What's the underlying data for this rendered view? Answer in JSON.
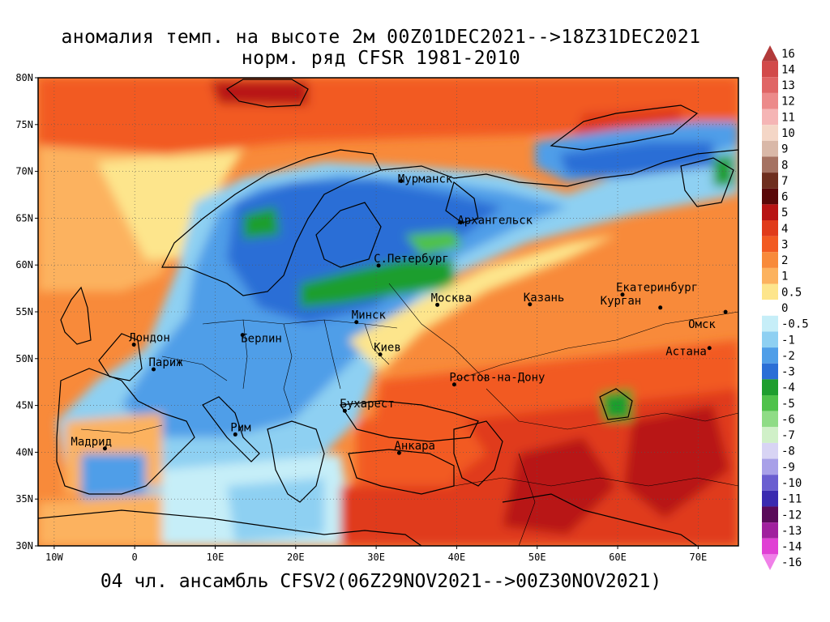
{
  "title_line1": "аномалия темп. на высоте 2м 00Z01DEC2021-->18Z31DEC2021",
  "title_line2": "норм. ряд CFSR 1981-2010",
  "footer": "04 чл. ансамбль CFSV2(06Z29NOV2021-->00Z30NOV2021)",
  "lat_ticks": [
    "80N",
    "75N",
    "70N",
    "65N",
    "60N",
    "55N",
    "50N",
    "45N",
    "40N",
    "35N",
    "30N"
  ],
  "lon_ticks": [
    "10W",
    "0",
    "10E",
    "20E",
    "30E",
    "40E",
    "50E",
    "60E",
    "70E"
  ],
  "legend": [
    {
      "label": "16",
      "color": "#b23a3a"
    },
    {
      "label": "14",
      "color": "#d24a4a"
    },
    {
      "label": "13",
      "color": "#e06565"
    },
    {
      "label": "12",
      "color": "#ec8a8a"
    },
    {
      "label": "11",
      "color": "#f5b5b5"
    },
    {
      "label": "10",
      "color": "#f4d6c6"
    },
    {
      "label": "9",
      "color": "#d9b8a8"
    },
    {
      "label": "8",
      "color": "#a57262"
    },
    {
      "label": "7",
      "color": "#6e2e1e"
    },
    {
      "label": "6",
      "color": "#5a0808"
    },
    {
      "label": "5",
      "color": "#b81414"
    },
    {
      "label": "4",
      "color": "#e03b1a"
    },
    {
      "label": "3",
      "color": "#f25a21"
    },
    {
      "label": "2",
      "color": "#f88a3a"
    },
    {
      "label": "1",
      "color": "#fcb25e"
    },
    {
      "label": "0.5",
      "color": "#fde58c"
    },
    {
      "label": "0",
      "color": "#ffffff"
    },
    {
      "label": "-0.5",
      "color": "#c6eef8"
    },
    {
      "label": "-1",
      "color": "#8ed0f2"
    },
    {
      "label": "-2",
      "color": "#4f9ee8"
    },
    {
      "label": "-3",
      "color": "#2a6ed6"
    },
    {
      "label": "-4",
      "color": "#1e9e2e"
    },
    {
      "label": "-5",
      "color": "#4fc24a"
    },
    {
      "label": "-6",
      "color": "#8fdc86"
    },
    {
      "label": "-7",
      "color": "#d0f0c8"
    },
    {
      "label": "-8",
      "color": "#d8d4f4"
    },
    {
      "label": "-9",
      "color": "#a8a0e8"
    },
    {
      "label": "-10",
      "color": "#6a5ed0"
    },
    {
      "label": "-11",
      "color": "#3a2ab0"
    },
    {
      "label": "-12",
      "color": "#5a0a5a"
    },
    {
      "label": "-13",
      "color": "#a0209e"
    },
    {
      "label": "-14",
      "color": "#e040d4"
    },
    {
      "label": "-16",
      "color": "#f080e8"
    }
  ],
  "cities": [
    {
      "name": "Мурманск",
      "lon": 33.1,
      "lat": 68.97,
      "dx": -4,
      "dy": 5
    },
    {
      "name": "Архангельск",
      "lon": 40.5,
      "lat": 64.55,
      "dx": -4,
      "dy": 5
    },
    {
      "name": "С.Петербург",
      "lon": 30.3,
      "lat": 59.94,
      "dx": -6,
      "dy": -1
    },
    {
      "name": "Москва",
      "lon": 37.6,
      "lat": 55.75,
      "dx": -8,
      "dy": -1
    },
    {
      "name": "Казань",
      "lon": 49.1,
      "lat": 55.8,
      "dx": -8,
      "dy": -1
    },
    {
      "name": "Екатеринбург",
      "lon": 60.6,
      "lat": 56.84,
      "dx": -8,
      "dy": -1
    },
    {
      "name": "Курган",
      "lon": 65.3,
      "lat": 55.45,
      "dx": -74,
      "dy": -1
    },
    {
      "name": "Омск",
      "lon": 73.4,
      "lat": 54.99,
      "dx": -46,
      "dy": 23
    },
    {
      "name": "Астана",
      "lon": 71.4,
      "lat": 51.13,
      "dx": -54,
      "dy": 12
    },
    {
      "name": "Минск",
      "lon": 27.55,
      "lat": 53.9,
      "dx": -6,
      "dy": -1
    },
    {
      "name": "Берлин",
      "lon": 13.4,
      "lat": 52.52,
      "dx": -2,
      "dy": 12
    },
    {
      "name": "Лондон",
      "lon": -0.1,
      "lat": 51.5,
      "dx": -6,
      "dy": -1
    },
    {
      "name": "Париж",
      "lon": 2.35,
      "lat": 48.86,
      "dx": -6,
      "dy": -1
    },
    {
      "name": "Киев",
      "lon": 30.5,
      "lat": 50.45,
      "dx": -8,
      "dy": -1
    },
    {
      "name": "Ростов-на-Дону",
      "lon": 39.7,
      "lat": 47.24,
      "dx": -6,
      "dy": -1
    },
    {
      "name": "Бухарест",
      "lon": 26.1,
      "lat": 44.43,
      "dx": -6,
      "dy": -1
    },
    {
      "name": "Рим",
      "lon": 12.5,
      "lat": 41.9,
      "dx": -6,
      "dy": -1
    },
    {
      "name": "Мадрид",
      "lon": -3.7,
      "lat": 40.4,
      "dx": -42,
      "dy": -1
    },
    {
      "name": "Анкара",
      "lon": 32.85,
      "lat": 39.93,
      "dx": -6,
      "dy": -1
    }
  ]
}
